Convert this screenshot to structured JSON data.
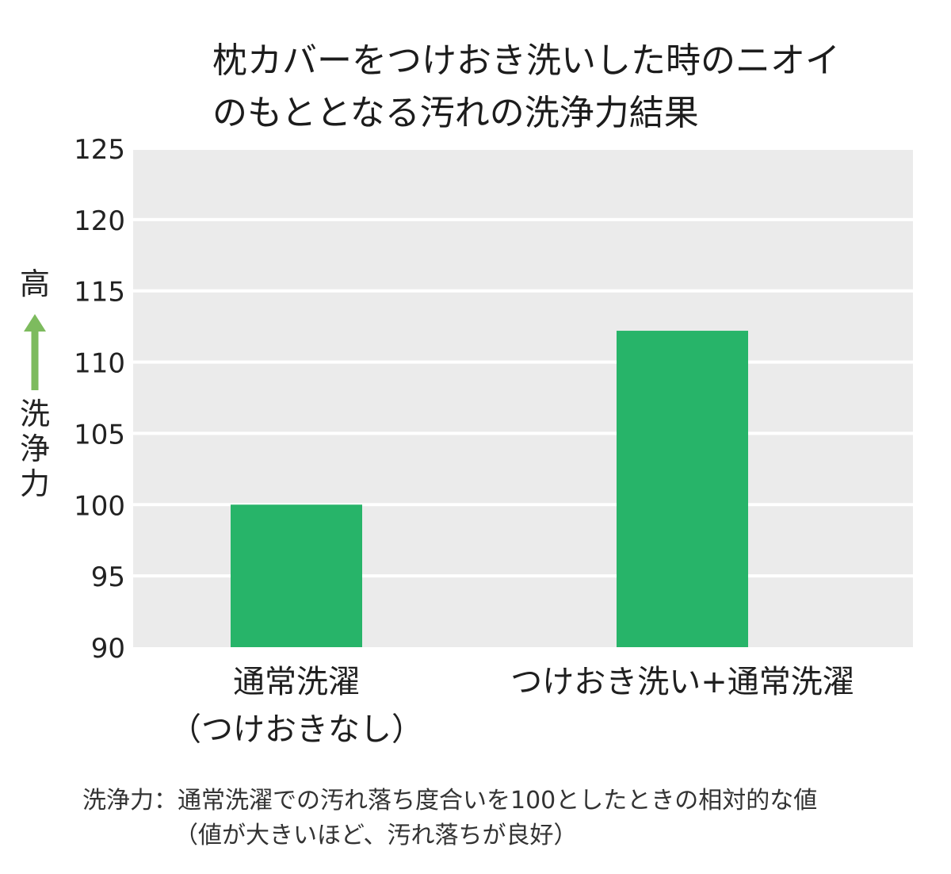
{
  "title_line1": "枕カバーをつけおき洗いした時のニオイ",
  "title_line2": "のもととなる汚れの洗浄力結果",
  "ylabel": {
    "top": "高",
    "text": "洗浄力",
    "arrow_color": "#7dbb5e"
  },
  "note": {
    "line1": "洗浄力：通常洗濯での汚れ落ち度合いを100としたときの相対的な値",
    "line2": "（値が大きいほど、汚れ落ちが良好）"
  },
  "chart_data": {
    "type": "bar",
    "title": "枕カバーをつけおき洗いした時のニオイのもととなる汚れの洗浄力結果",
    "ylabel": "洗浄力",
    "categories": [
      {
        "line1": "通常洗濯",
        "line2": "（つけおきなし）"
      },
      {
        "line1": "つけおき洗い+通常洗濯",
        "line2": ""
      }
    ],
    "values": [
      100,
      112.2
    ],
    "ylim": [
      90,
      125
    ],
    "yticks": [
      90,
      95,
      100,
      105,
      110,
      115,
      120,
      125
    ],
    "grid": true,
    "bar_color": "#27b469",
    "plot_background": "#ebebeb",
    "grid_color": "#ffffff"
  }
}
